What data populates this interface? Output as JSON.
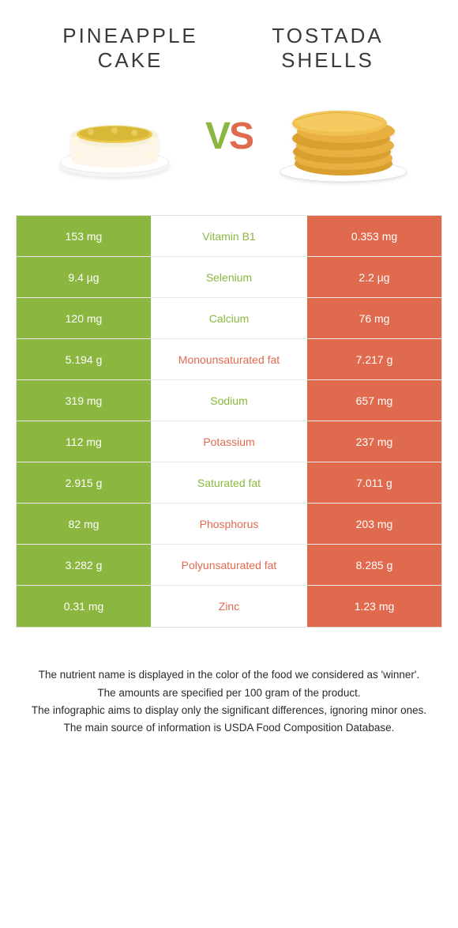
{
  "colors": {
    "green": "#8bb63f",
    "orange": "#e06a4e",
    "text": "#3a3a3a",
    "white": "#ffffff"
  },
  "left_food": {
    "title_line1": "PINEAPPLE",
    "title_line2": "CAKE"
  },
  "right_food": {
    "title_line1": "Tostada",
    "title_line2": "shells"
  },
  "vs": {
    "v": "V",
    "s": "S"
  },
  "rows": [
    {
      "left": "153 mg",
      "label": "Vitamin B1",
      "right": "0.353 mg",
      "winner": "left"
    },
    {
      "left": "9.4 µg",
      "label": "Selenium",
      "right": "2.2 µg",
      "winner": "left"
    },
    {
      "left": "120 mg",
      "label": "Calcium",
      "right": "76 mg",
      "winner": "left"
    },
    {
      "left": "5.194 g",
      "label": "Monounsaturated fat",
      "right": "7.217 g",
      "winner": "right"
    },
    {
      "left": "319 mg",
      "label": "Sodium",
      "right": "657 mg",
      "winner": "left"
    },
    {
      "left": "112 mg",
      "label": "Potassium",
      "right": "237 mg",
      "winner": "right"
    },
    {
      "left": "2.915 g",
      "label": "Saturated fat",
      "right": "7.011 g",
      "winner": "left"
    },
    {
      "left": "82 mg",
      "label": "Phosphorus",
      "right": "203 mg",
      "winner": "right"
    },
    {
      "left": "3.282 g",
      "label": "Polyunsaturated fat",
      "right": "8.285 g",
      "winner": "right"
    },
    {
      "left": "0.31 mg",
      "label": "Zinc",
      "right": "1.23 mg",
      "winner": "right"
    }
  ],
  "footer": {
    "line1": "The nutrient name is displayed in the color of the food we considered as 'winner'.",
    "line2": "The amounts are specified per 100 gram of the product.",
    "line3": "The infographic aims to display only the significant differences, ignoring minor ones.",
    "line4": "The main source of information is USDA Food Composition Database."
  }
}
